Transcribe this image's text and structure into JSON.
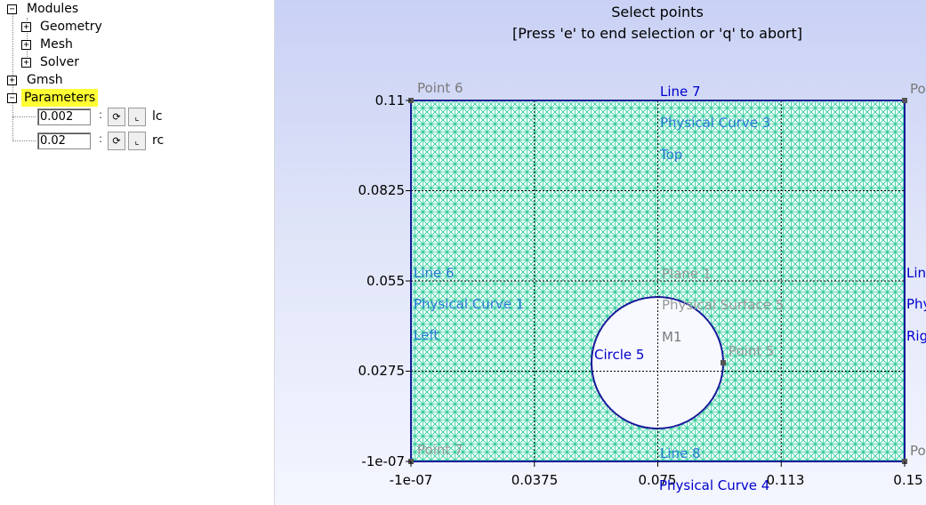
{
  "tree": {
    "modules": "Modules",
    "geometry": "Geometry",
    "mesh": "Mesh",
    "solver": "Solver",
    "gmsh": "Gmsh",
    "parameters": "Parameters",
    "params": [
      {
        "value": "0.002",
        "name": "lc"
      },
      {
        "value": "0.02",
        "name": "rc"
      }
    ],
    "expanded_symbol": "−",
    "collapsed_symbol": "+"
  },
  "status": {
    "line1": "Select points",
    "line2": "[Press 'e' to end selection or 'q' to abort]"
  },
  "axes": {
    "x_ticks": [
      "-1e-07",
      "0.0375",
      "0.075",
      "0.113",
      "0.15"
    ],
    "y_ticks": [
      "0.11",
      "0.0825",
      "0.055",
      "0.0275",
      "-1e-07"
    ]
  },
  "labels": {
    "point6": "Point 6",
    "point_tr": "Po",
    "point_br": "Po",
    "point7": "Point 7",
    "line7": "Line 7",
    "phys_curve3": "Physical Curve 3",
    "top": "Top",
    "line6": "Line 6",
    "phys_curve1": "Physical Curve 1",
    "left": "Left",
    "plane1": "Plane 1",
    "phys_surface5": "Physical Surface 5",
    "m1": "M1",
    "circle5": "Circle 5",
    "point5": "Point 5",
    "line8": "Line 8",
    "phys_curve4": "Physical Curve 4",
    "line_r": "Lin",
    "phys_r": "Phy",
    "right_r": "Rig"
  },
  "colors": {
    "mesh": "#2ec99a",
    "mesh_light": "#9deacb",
    "boundary": "#1a1a9a",
    "label_blue": "#0000cc",
    "label_mesh": "#2a7bd5",
    "label_gray": "#7a7a7a",
    "highlight": "#ffff33"
  }
}
